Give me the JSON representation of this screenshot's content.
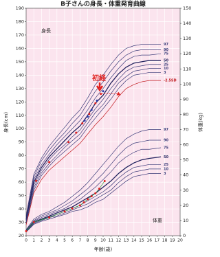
{
  "chart_data": {
    "type": "line",
    "title": "B子さんの身長・体重発育曲線",
    "xlabel": "年齢(歳)",
    "ylabel": "身長(cm)",
    "y2label": "体重(kg)",
    "annotations": [
      "身長",
      "体重",
      "初経"
    ],
    "xlim": [
      0,
      20
    ],
    "xticks": [
      0,
      1,
      2,
      3,
      4,
      5,
      6,
      7,
      8,
      9,
      10,
      11,
      12,
      13,
      14,
      15,
      16,
      17,
      18,
      19,
      20
    ],
    "ylim": [
      20,
      190
    ],
    "yticks": [
      20,
      30,
      40,
      50,
      60,
      70,
      80,
      90,
      100,
      110,
      120,
      130,
      140,
      150,
      160,
      170,
      180,
      190
    ],
    "y2lim": [
      0,
      150
    ],
    "y2ticks": [
      0,
      10,
      20,
      30,
      40,
      50,
      60,
      70,
      80,
      90,
      100,
      110,
      120,
      130,
      140,
      150
    ],
    "grid": true,
    "background": "#fbe4ee",
    "series": [
      {
        "name": "97",
        "color": "#3a3a78",
        "x": [
          0,
          1,
          2,
          3,
          4,
          5,
          6,
          7,
          8,
          9,
          10,
          11,
          12,
          13,
          14,
          15,
          16,
          17.5
        ],
        "values": [
          35,
          66,
          78,
          87,
          94,
          101,
          108,
          114,
          123,
          133,
          140,
          148,
          155,
          160,
          162,
          163,
          163,
          163
        ]
      },
      {
        "name": "90",
        "color": "#3a3a78",
        "x": [
          0,
          1,
          2,
          3,
          4,
          5,
          6,
          7,
          8,
          9,
          10,
          11,
          12,
          13,
          14,
          15,
          16,
          17.5
        ],
        "values": [
          34,
          64,
          76,
          84,
          91,
          97,
          104,
          110,
          119,
          128,
          135,
          143,
          150,
          155,
          158,
          159,
          159,
          159
        ]
      },
      {
        "name": "75",
        "color": "#3a3a78",
        "x": [
          0,
          1,
          2,
          3,
          4,
          5,
          6,
          7,
          8,
          9,
          10,
          11,
          12,
          13,
          14,
          15,
          16,
          17.5
        ],
        "values": [
          33,
          62,
          73,
          81,
          88,
          94,
          100,
          106,
          114,
          123,
          130,
          138,
          145,
          151,
          154,
          155,
          155,
          156
        ]
      },
      {
        "name": "50",
        "color": "#22225e",
        "x": [
          0,
          1,
          2,
          3,
          4,
          5,
          6,
          7,
          8,
          9,
          10,
          11,
          12,
          13,
          14,
          15,
          16,
          17.5
        ],
        "values": [
          32,
          60,
          71,
          79,
          85,
          91,
          97,
          102,
          110,
          119,
          125,
          134,
          141,
          146,
          149,
          150,
          151,
          151
        ]
      },
      {
        "name": "25",
        "color": "#3a3a78",
        "x": [
          0,
          1,
          2,
          3,
          4,
          5,
          6,
          7,
          8,
          9,
          10,
          11,
          12,
          13,
          14,
          15,
          16,
          17.5
        ],
        "values": [
          31,
          58,
          69,
          77,
          83,
          88,
          94,
          99,
          107,
          115,
          122,
          130,
          137,
          143,
          146,
          147,
          148,
          148
        ]
      },
      {
        "name": "10",
        "color": "#3a3a78",
        "x": [
          0,
          1,
          2,
          3,
          4,
          5,
          6,
          7,
          8,
          9,
          10,
          11,
          12,
          13,
          14,
          15,
          16,
          17.5
        ],
        "values": [
          30,
          56,
          67,
          74,
          80,
          86,
          91,
          96,
          104,
          112,
          118,
          126,
          134,
          139,
          143,
          144,
          145,
          145
        ]
      },
      {
        "name": "3",
        "color": "#3a3a78",
        "x": [
          0,
          1,
          2,
          3,
          4,
          5,
          6,
          7,
          8,
          9,
          10,
          11,
          12,
          13,
          14,
          15,
          16,
          17.5
        ],
        "values": [
          29,
          54,
          65,
          72,
          78,
          83,
          88,
          93,
          101,
          108,
          115,
          122,
          130,
          136,
          140,
          141,
          142,
          142
        ]
      },
      {
        "name": "-2.5SD",
        "color": "#c0181c",
        "x": [
          0,
          1,
          2,
          3,
          4,
          5,
          6,
          7,
          8,
          9,
          10,
          11,
          12,
          13,
          14,
          15,
          16,
          17.5
        ],
        "values": [
          28,
          52,
          62,
          69,
          74,
          79,
          84,
          89,
          96,
          103,
          109,
          116,
          124,
          130,
          133,
          135,
          136,
          136
        ]
      },
      {
        "color": "#e02020",
        "mode": "markers",
        "marker": "triangle",
        "x": [
          12
        ],
        "values": [
          126
        ]
      },
      {
        "color": "#e02020",
        "dash": true,
        "x": [
          9.8,
          12
        ],
        "values": [
          126,
          126
        ]
      },
      {
        "color": "#e02020",
        "mode": "markers",
        "marker": "circle",
        "x": [
          1.3,
          3,
          5.5,
          6.5,
          7.3,
          8.2,
          9,
          9.7
        ],
        "values": [
          61,
          75,
          90,
          97,
          104,
          111,
          119,
          126
        ]
      },
      {
        "color": "#2a3aa8",
        "mode": "markers",
        "marker": "circle",
        "x": [
          7.6,
          8,
          8.5,
          9.2,
          10
        ],
        "values": [
          106,
          109,
          114,
          121,
          128
        ]
      },
      {
        "name": "97",
        "color": "#3a3a78",
        "axis": "y2",
        "x": [
          0,
          1,
          2,
          3,
          4,
          5,
          6,
          7,
          8,
          9,
          10,
          11,
          12,
          13,
          14,
          15,
          16,
          17.5
        ],
        "values": [
          4,
          11,
          14,
          16,
          19,
          22,
          26,
          30,
          35,
          41,
          47,
          53,
          59,
          64,
          67,
          69,
          70,
          70
        ]
      },
      {
        "name": "90",
        "color": "#3a3a78",
        "axis": "y2",
        "x": [
          0,
          1,
          2,
          3,
          4,
          5,
          6,
          7,
          8,
          9,
          10,
          11,
          12,
          13,
          14,
          15,
          16,
          17.5
        ],
        "values": [
          3.7,
          10,
          13,
          15,
          17,
          20,
          23,
          27,
          31,
          36,
          41,
          47,
          53,
          58,
          61,
          62,
          63,
          63
        ]
      },
      {
        "name": "75",
        "color": "#3a3a78",
        "axis": "y2",
        "x": [
          0,
          1,
          2,
          3,
          4,
          5,
          6,
          7,
          8,
          9,
          10,
          11,
          12,
          13,
          14,
          15,
          16,
          17.5
        ],
        "values": [
          3.3,
          9.5,
          12,
          14,
          16,
          18,
          21,
          24,
          28,
          32,
          37,
          42,
          48,
          52,
          55,
          57,
          57,
          58
        ]
      },
      {
        "name": "50",
        "color": "#22225e",
        "axis": "y2",
        "x": [
          0,
          1,
          2,
          3,
          4,
          5,
          6,
          7,
          8,
          9,
          10,
          11,
          12,
          13,
          14,
          15,
          16,
          17.5
        ],
        "values": [
          3,
          9,
          11,
          13,
          15,
          17,
          19,
          22,
          25,
          28,
          32,
          36,
          41,
          45,
          48,
          50,
          51,
          52
        ]
      },
      {
        "name": "25",
        "color": "#3a3a78",
        "axis": "y2",
        "x": [
          0,
          1,
          2,
          3,
          4,
          5,
          6,
          7,
          8,
          9,
          10,
          11,
          12,
          13,
          14,
          15,
          16,
          17.5
        ],
        "values": [
          2.8,
          8.5,
          10.5,
          12.5,
          14,
          16,
          18,
          20,
          23,
          26,
          29,
          33,
          38,
          42,
          45,
          46,
          47,
          47
        ]
      },
      {
        "name": "10",
        "color": "#3a3a78",
        "axis": "y2",
        "x": [
          0,
          1,
          2,
          3,
          4,
          5,
          6,
          7,
          8,
          9,
          10,
          11,
          12,
          13,
          14,
          15,
          16,
          17.5
        ],
        "values": [
          2.6,
          8,
          10,
          12,
          13,
          15,
          17,
          19,
          21,
          24,
          27,
          30,
          35,
          39,
          42,
          43,
          44,
          44
        ]
      },
      {
        "name": "3",
        "color": "#3a3a78",
        "axis": "y2",
        "x": [
          0,
          1,
          2,
          3,
          4,
          5,
          6,
          7,
          8,
          9,
          10,
          11,
          12,
          13,
          14,
          15,
          16,
          17.5
        ],
        "values": [
          2.4,
          7.5,
          9.5,
          11,
          12.5,
          14,
          16,
          17,
          19,
          22,
          24,
          28,
          32,
          36,
          39,
          40,
          41,
          41
        ]
      },
      {
        "color": "#2a9d3a",
        "marker": "circle",
        "marker_color": "#e02020",
        "axis": "y2",
        "x": [
          0,
          1,
          3,
          5,
          6,
          7,
          7.5,
          8,
          8.5,
          9,
          9.5,
          10.2
        ],
        "values": [
          3,
          9,
          12,
          16,
          18,
          20,
          22,
          24,
          26,
          28,
          31,
          36
        ]
      }
    ]
  }
}
